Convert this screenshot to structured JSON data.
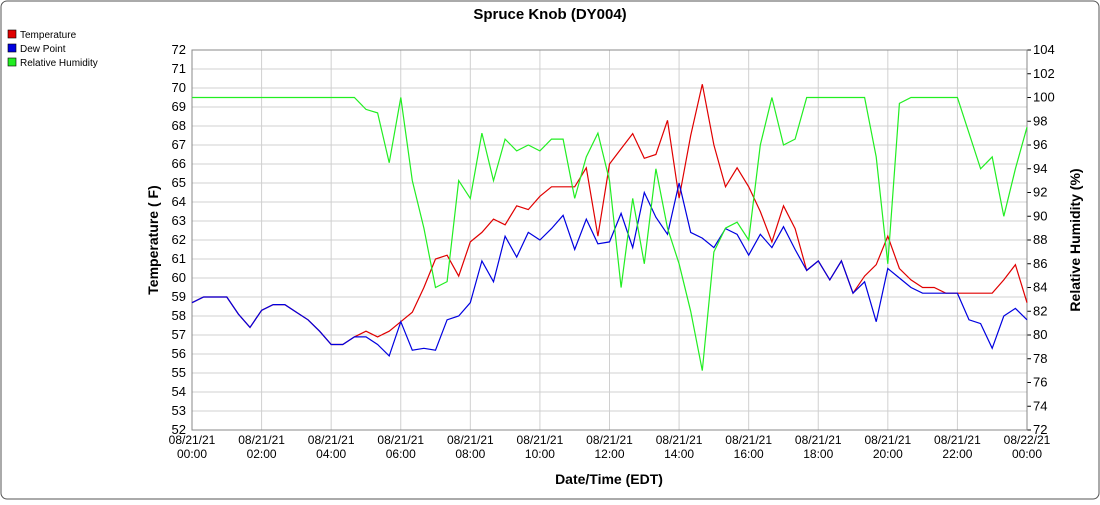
{
  "chart_data": {
    "type": "line",
    "title": "Spruce Knob (DY004)",
    "x_label": "Date/Time (EDT)",
    "y_label": "Temperature ( F)",
    "y2_label": "Relative Humidity (%)",
    "x": [
      "08/21/21 00:00",
      "08/21/21 00:20",
      "08/21/21 00:40",
      "08/21/21 01:00",
      "08/21/21 01:20",
      "08/21/21 01:40",
      "08/21/21 02:00",
      "08/21/21 02:20",
      "08/21/21 02:40",
      "08/21/21 03:00",
      "08/21/21 03:20",
      "08/21/21 03:40",
      "08/21/21 04:00",
      "08/21/21 04:20",
      "08/21/21 04:40",
      "08/21/21 05:00",
      "08/21/21 05:20",
      "08/21/21 05:40",
      "08/21/21 06:00",
      "08/21/21 06:20",
      "08/21/21 06:40",
      "08/21/21 07:00",
      "08/21/21 07:20",
      "08/21/21 07:40",
      "08/21/21 08:00",
      "08/21/21 08:20",
      "08/21/21 08:40",
      "08/21/21 09:00",
      "08/21/21 09:20",
      "08/21/21 09:40",
      "08/21/21 10:00",
      "08/21/21 10:20",
      "08/21/21 10:40",
      "08/21/21 11:00",
      "08/21/21 11:20",
      "08/21/21 11:40",
      "08/21/21 12:00",
      "08/21/21 12:20",
      "08/21/21 12:40",
      "08/21/21 13:00",
      "08/21/21 13:20",
      "08/21/21 13:40",
      "08/21/21 14:00",
      "08/21/21 14:20",
      "08/21/21 14:40",
      "08/21/21 15:00",
      "08/21/21 15:20",
      "08/21/21 15:40",
      "08/21/21 16:00",
      "08/21/21 16:20",
      "08/21/21 16:40",
      "08/21/21 17:00",
      "08/21/21 17:20",
      "08/21/21 17:40",
      "08/21/21 18:00",
      "08/21/21 18:20",
      "08/21/21 18:40",
      "08/21/21 19:00",
      "08/21/21 19:20",
      "08/21/21 19:40",
      "08/21/21 20:00",
      "08/21/21 20:20",
      "08/21/21 20:40",
      "08/21/21 21:00",
      "08/21/21 21:20",
      "08/21/21 21:40",
      "08/21/21 22:00",
      "08/21/21 22:20",
      "08/21/21 22:40",
      "08/21/21 23:00",
      "08/21/21 23:20",
      "08/21/21 23:40",
      "08/22/21 00:00"
    ],
    "xlim": [
      "08/21/21 00:00",
      "08/22/21 00:00"
    ],
    "xticks": [
      "08/21/21 00:00",
      "08/21/21 02:00",
      "08/21/21 04:00",
      "08/21/21 06:00",
      "08/21/21 08:00",
      "08/21/21 10:00",
      "08/21/21 12:00",
      "08/21/21 14:00",
      "08/21/21 16:00",
      "08/21/21 18:00",
      "08/21/21 20:00",
      "08/21/21 22:00",
      "08/22/21 00:00"
    ],
    "ylim": [
      52,
      72
    ],
    "yticks": [
      52,
      53,
      54,
      55,
      56,
      57,
      58,
      59,
      60,
      61,
      62,
      63,
      64,
      65,
      66,
      67,
      68,
      69,
      70,
      71,
      72
    ],
    "y2lim": [
      72,
      104
    ],
    "y2ticks": [
      72,
      74,
      76,
      78,
      80,
      82,
      84,
      86,
      88,
      90,
      92,
      94,
      96,
      98,
      100,
      102,
      104
    ],
    "grid": true,
    "series": [
      {
        "name": "Temperature",
        "color": "#e00000",
        "values": [
          58.7,
          59.0,
          59.0,
          59.0,
          58.1,
          57.4,
          58.3,
          58.6,
          58.6,
          58.2,
          57.8,
          57.2,
          56.5,
          56.5,
          56.9,
          57.2,
          56.9,
          57.2,
          57.7,
          58.2,
          59.5,
          61.0,
          61.2,
          60.1,
          61.9,
          62.4,
          63.1,
          62.8,
          63.8,
          63.6,
          64.3,
          64.8,
          64.8,
          64.8,
          65.8,
          62.2,
          66.0,
          66.8,
          67.6,
          66.3,
          66.5,
          68.3,
          64.2,
          67.5,
          70.2,
          67.0,
          64.8,
          65.8,
          64.8,
          63.5,
          61.9,
          63.8,
          62.6,
          60.4,
          60.9,
          59.9,
          60.9,
          59.2,
          60.1,
          60.7,
          62.2,
          60.5,
          59.9,
          59.5,
          59.5,
          59.2,
          59.2,
          59.2,
          59.2,
          59.2,
          59.9,
          60.7,
          58.7
        ]
      },
      {
        "name": "Dew Point",
        "color": "#0000e0",
        "values": [
          58.7,
          59.0,
          59.0,
          59.0,
          58.1,
          57.4,
          58.3,
          58.6,
          58.6,
          58.2,
          57.8,
          57.2,
          56.5,
          56.5,
          56.9,
          56.9,
          56.5,
          55.9,
          57.7,
          56.2,
          56.3,
          56.2,
          57.8,
          58.0,
          58.7,
          60.9,
          59.8,
          62.2,
          61.1,
          62.4,
          62.0,
          62.6,
          63.3,
          61.5,
          63.1,
          61.8,
          61.9,
          63.4,
          61.6,
          64.5,
          63.2,
          62.3,
          65.0,
          62.4,
          62.1,
          61.6,
          62.6,
          62.3,
          61.2,
          62.3,
          61.6,
          62.7,
          61.5,
          60.4,
          60.9,
          59.9,
          60.9,
          59.2,
          59.8,
          57.7,
          60.5,
          60.0,
          59.5,
          59.2,
          59.2,
          59.2,
          59.2,
          57.8,
          57.6,
          56.3,
          58.0,
          58.4,
          57.8
        ]
      },
      {
        "name": "Relative Humidity",
        "color": "#22ee22",
        "axis": "y2",
        "values": [
          100,
          100,
          100,
          100,
          100,
          100,
          100,
          100,
          100,
          100,
          100,
          100,
          100,
          100,
          100,
          99,
          98.7,
          94.5,
          100,
          93,
          89,
          84,
          84.5,
          93,
          91.5,
          97,
          93,
          96.5,
          95.5,
          96,
          95.5,
          96.5,
          96.5,
          91.5,
          95,
          97,
          93,
          84,
          91.5,
          86,
          94,
          89,
          86,
          82,
          77,
          87,
          89,
          89.5,
          88,
          96,
          100,
          96,
          96.5,
          100,
          100,
          100,
          100,
          100,
          100,
          95,
          86,
          99.5,
          100,
          100,
          100,
          100,
          100,
          97,
          94,
          95,
          90,
          94,
          97.5
        ]
      }
    ]
  }
}
